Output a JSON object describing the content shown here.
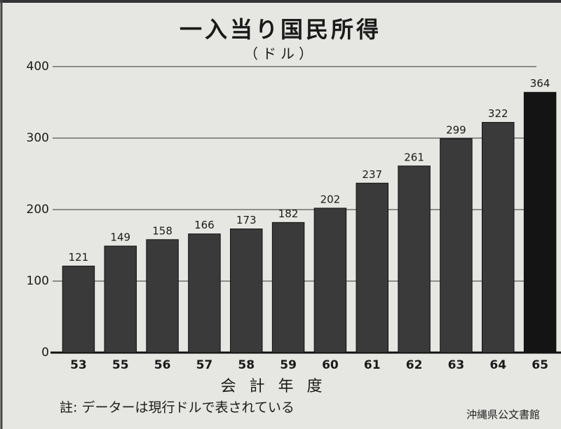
{
  "chart_data": {
    "type": "bar",
    "title": "一入当り国民所得",
    "subtitle": "（ドル）",
    "x_label": "会 計 年 度",
    "note": "註: データーは現行ドルで表されている",
    "watermark": "沖縄県公文書館",
    "categories": [
      "53",
      "55",
      "56",
      "57",
      "58",
      "59",
      "60",
      "61",
      "62",
      "63",
      "64",
      "65"
    ],
    "values": [
      121,
      149,
      158,
      166,
      173,
      182,
      202,
      237,
      261,
      299,
      322,
      364
    ],
    "colors": [
      "#3a3a3a",
      "#3a3a3a",
      "#3a3a3a",
      "#3a3a3a",
      "#3a3a3a",
      "#3a3a3a",
      "#3a3a3a",
      "#3a3a3a",
      "#3a3a3a",
      "#3a3a3a",
      "#3a3a3a",
      "#141414"
    ],
    "ylim": [
      0,
      400
    ],
    "yticks": [
      0,
      100,
      200,
      300,
      400
    ],
    "grid": true
  }
}
